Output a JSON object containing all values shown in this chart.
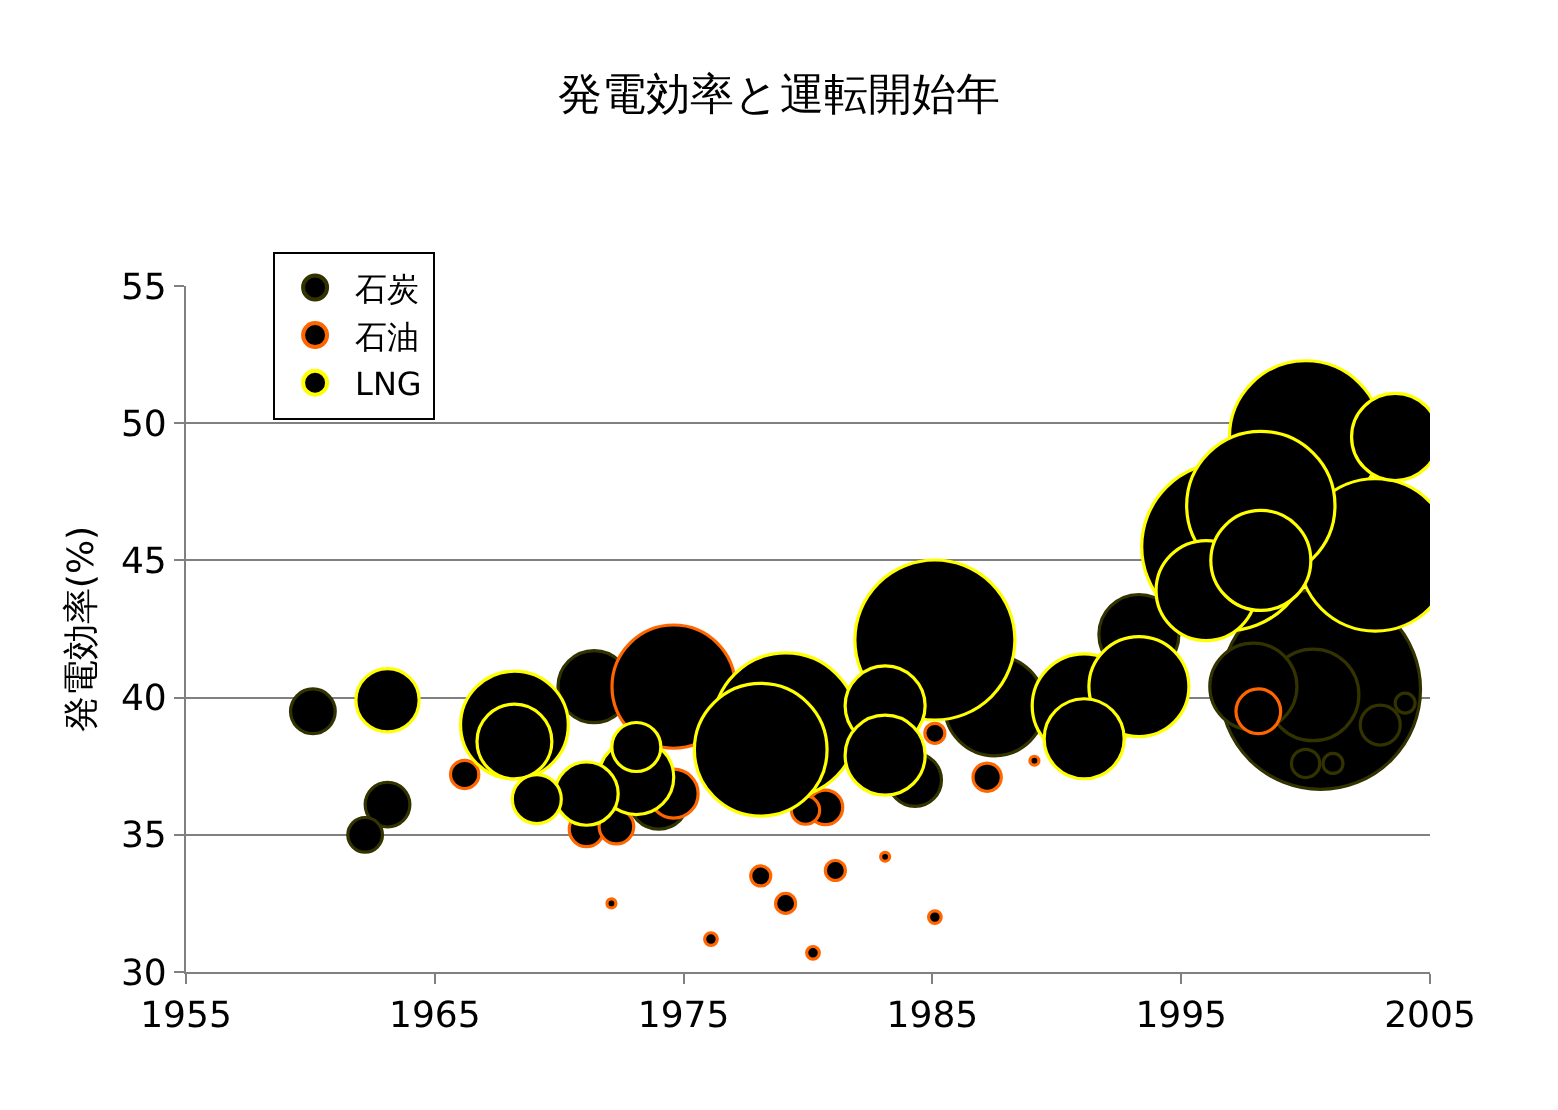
{
  "chart_data": {
    "type": "bubble",
    "title": "発電効率と運転開始年",
    "ylabel": "発電効率(%)",
    "xlim": [
      1955,
      2005
    ],
    "xticks": [
      1955,
      1965,
      1975,
      1985,
      1995,
      2005
    ],
    "ylim": [
      30,
      55
    ],
    "yticks": [
      30,
      35,
      40,
      45,
      50,
      55
    ],
    "grid": "y",
    "legend": "top left",
    "marker": "circle",
    "series": [
      {
        "name": "石炭",
        "color": "#333300",
        "x": [
          2000.6,
          1987.5,
          2000.3,
          1997.9,
          1993.3,
          1971.4,
          1974.0,
          1984.3,
          1960.1,
          1963.1,
          2003.0,
          1962.2,
          2000.0,
          2001.1,
          2004.0
        ],
        "values": [
          40.3,
          39.7,
          40.1,
          40.4,
          42.3,
          40.4,
          36.3,
          37.0,
          39.5,
          36.1,
          39.0,
          35.0,
          37.6,
          37.6,
          39.8
        ],
        "sizes": [
          1,
          0.25,
          0.21,
          0.19,
          0.16,
          0.13,
          0.09,
          0.07,
          0.05,
          0.05,
          0.04,
          0.03,
          0.02,
          0.01,
          0.01
        ]
      },
      {
        "name": "石油",
        "color": "#ff6600",
        "x": [
          1974.6,
          1974.6,
          1998.1,
          1966.2,
          1972.1,
          1971.1,
          1972.3,
          1978.1,
          1979.1,
          1976.1,
          1980.2,
          1981.1,
          1983.1,
          1985.1,
          1987.2,
          1989.1,
          1985.1,
          1980.7,
          1979.9
        ],
        "values": [
          40.4,
          36.5,
          39.5,
          37.2,
          32.5,
          35.2,
          35.3,
          33.5,
          32.5,
          31.2,
          30.7,
          33.7,
          34.2,
          32.0,
          37.1,
          37.7,
          38.7,
          36.0,
          35.9
        ],
        "sizes": [
          0.38,
          0.06,
          0.05,
          0.02,
          0.002,
          0.03,
          0.03,
          0.01,
          0.01,
          0.004,
          0.004,
          0.01,
          0.002,
          0.004,
          0.02,
          0.002,
          0.01,
          0.03,
          0.02
        ]
      },
      {
        "name": "LNG",
        "color": "#ffff00",
        "x": [
          1996.8,
          1985.1,
          2000.0,
          2002.8,
          1998.2,
          1979.1,
          1978.1,
          1968.2,
          1991.1,
          1993.3,
          1996.0,
          1998.2,
          2003.6,
          1983.1,
          1983.1,
          1991.1,
          1968.2,
          1973.1,
          1963.1,
          1971.1,
          1969.1,
          1973.1
        ],
        "values": [
          45.5,
          42.1,
          49.5,
          45.2,
          47.0,
          39.0,
          38.1,
          39.0,
          39.7,
          40.4,
          43.9,
          45.0,
          49.5,
          39.7,
          37.9,
          38.5,
          38.4,
          37.1,
          39.9,
          36.5,
          36.3,
          38.2
        ],
        "sizes": [
          0.71,
          0.64,
          0.58,
          0.58,
          0.55,
          0.52,
          0.44,
          0.29,
          0.27,
          0.25,
          0.25,
          0.25,
          0.19,
          0.16,
          0.16,
          0.16,
          0.14,
          0.14,
          0.1,
          0.1,
          0.06,
          0.06
        ]
      }
    ]
  }
}
